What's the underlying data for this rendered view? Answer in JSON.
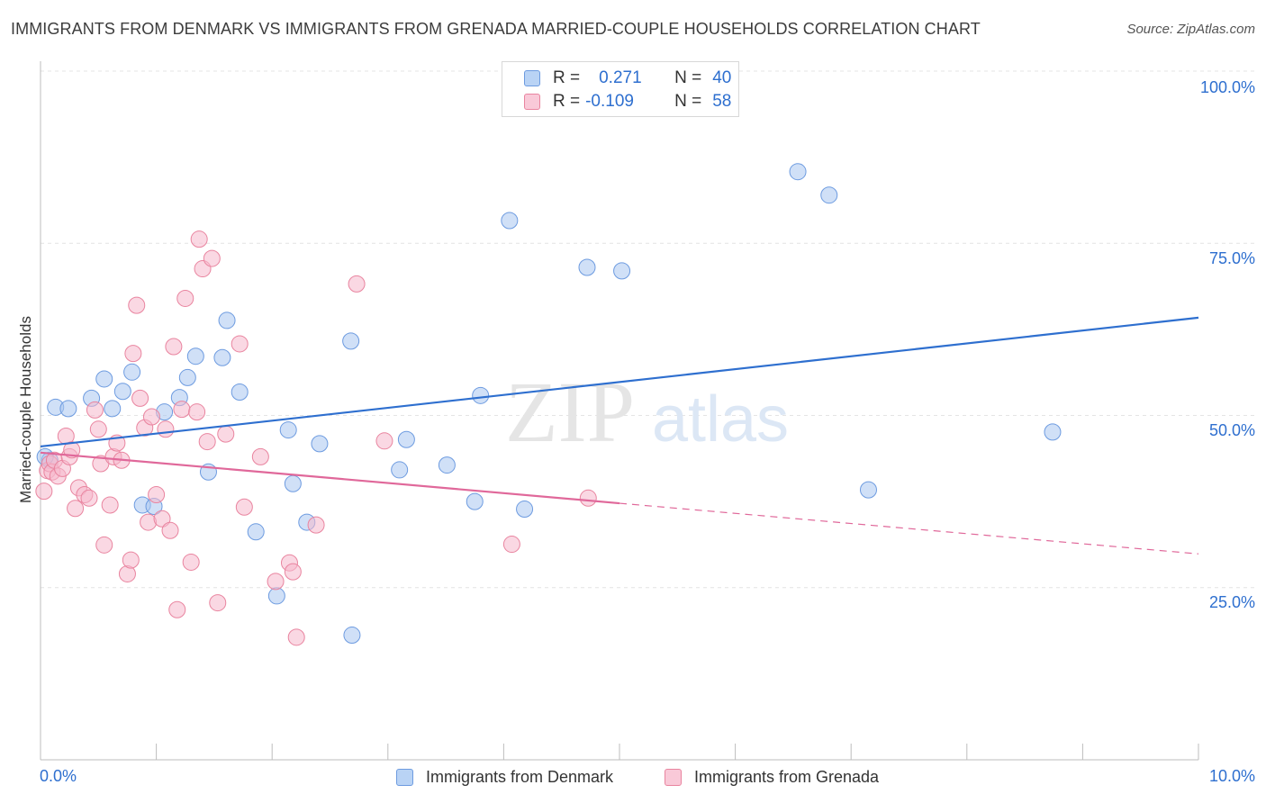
{
  "title": "IMMIGRANTS FROM DENMARK VS IMMIGRANTS FROM GRENADA MARRIED-COUPLE HOUSEHOLDS CORRELATION CHART",
  "source": "Source: ZipAtlas.com",
  "watermark": {
    "part1": "ZIP",
    "part2": "atlas"
  },
  "colors": {
    "denmark_fill": "#a9c7f0",
    "denmark_stroke": "#6d9be0",
    "denmark_line": "#2e6fcf",
    "grenada_fill": "#f6b8cc",
    "grenada_stroke": "#e9849f",
    "grenada_line": "#e0689a",
    "axis_text": "#2e6fcf",
    "grid": "#e4e4e4"
  },
  "legend": {
    "rows": [
      {
        "r_label": "R =",
        "r_value": "0.271",
        "n_label": "N =",
        "n_value": "40"
      },
      {
        "r_label": "R =",
        "r_value": "-0.109",
        "n_label": "N =",
        "n_value": "58"
      }
    ]
  },
  "bottom_legend": [
    {
      "label": "Immigrants from Denmark"
    },
    {
      "label": "Immigrants from Grenada"
    }
  ],
  "chart_data": {
    "type": "scatter",
    "title": "IMMIGRANTS FROM DENMARK VS IMMIGRANTS FROM GRENADA MARRIED-COUPLE HOUSEHOLDS CORRELATION CHART",
    "xlabel": "",
    "ylabel": "Married-couple Households",
    "xlim": [
      0,
      10
    ],
    "ylim": [
      0,
      105
    ],
    "x_tick_labels": [
      {
        "value": 0,
        "label": "0.0%"
      },
      {
        "value": 10,
        "label": "10.0%"
      }
    ],
    "y_tick_labels": [
      {
        "value": 25,
        "label": "25.0%"
      },
      {
        "value": 50,
        "label": "50.0%"
      },
      {
        "value": 75,
        "label": "75.0%"
      },
      {
        "value": 100,
        "label": "100.0%"
      }
    ],
    "grid": true,
    "legend_position": "top-center",
    "series": [
      {
        "name": "Immigrants from Denmark",
        "r": 0.271,
        "n": 40,
        "trend": {
          "x": [
            0,
            10
          ],
          "y": [
            45.5,
            64.2
          ],
          "dashed_after": null
        },
        "points": [
          [
            0.08,
            43.5
          ],
          [
            0.13,
            51.2
          ],
          [
            0.24,
            51.0
          ],
          [
            0.44,
            52.5
          ],
          [
            0.55,
            55.3
          ],
          [
            0.62,
            51.0
          ],
          [
            0.71,
            53.5
          ],
          [
            0.79,
            56.3
          ],
          [
            0.88,
            37.0
          ],
          [
            0.98,
            36.8
          ],
          [
            1.07,
            50.5
          ],
          [
            1.2,
            52.6
          ],
          [
            1.27,
            55.5
          ],
          [
            1.34,
            58.6
          ],
          [
            1.45,
            41.8
          ],
          [
            1.57,
            58.4
          ],
          [
            1.61,
            63.8
          ],
          [
            1.72,
            53.4
          ],
          [
            1.86,
            33.1
          ],
          [
            2.04,
            23.8
          ],
          [
            2.14,
            47.9
          ],
          [
            2.18,
            40.1
          ],
          [
            2.3,
            34.5
          ],
          [
            2.41,
            45.9
          ],
          [
            2.68,
            60.8
          ],
          [
            2.69,
            18.1
          ],
          [
            3.1,
            42.1
          ],
          [
            3.16,
            46.5
          ],
          [
            3.51,
            42.8
          ],
          [
            3.75,
            37.5
          ],
          [
            3.8,
            52.9
          ],
          [
            4.05,
            78.3
          ],
          [
            4.18,
            36.4
          ],
          [
            4.72,
            71.5
          ],
          [
            5.02,
            71.0
          ],
          [
            6.54,
            85.4
          ],
          [
            6.81,
            82.0
          ],
          [
            7.15,
            39.2
          ],
          [
            8.74,
            47.6
          ],
          [
            0.04,
            44.0
          ]
        ]
      },
      {
        "name": "Immigrants from Grenada",
        "r": -0.109,
        "n": 58,
        "trend": {
          "x": [
            0,
            10
          ],
          "y": [
            44.6,
            29.9
          ],
          "solid_until_x": 5.0
        },
        "points": [
          [
            0.03,
            39.0
          ],
          [
            0.06,
            42.0
          ],
          [
            0.08,
            43.0
          ],
          [
            0.1,
            41.8
          ],
          [
            0.12,
            43.5
          ],
          [
            0.15,
            41.2
          ],
          [
            0.19,
            42.3
          ],
          [
            0.22,
            47.0
          ],
          [
            0.25,
            44.0
          ],
          [
            0.27,
            45.0
          ],
          [
            0.3,
            36.5
          ],
          [
            0.33,
            39.5
          ],
          [
            0.38,
            38.5
          ],
          [
            0.42,
            38.0
          ],
          [
            0.47,
            50.8
          ],
          [
            0.5,
            48.0
          ],
          [
            0.52,
            43.0
          ],
          [
            0.55,
            31.2
          ],
          [
            0.6,
            37.0
          ],
          [
            0.63,
            44.0
          ],
          [
            0.66,
            46.0
          ],
          [
            0.7,
            43.5
          ],
          [
            0.75,
            27.0
          ],
          [
            0.78,
            29.0
          ],
          [
            0.8,
            59.0
          ],
          [
            0.83,
            66.0
          ],
          [
            0.86,
            52.5
          ],
          [
            0.9,
            48.2
          ],
          [
            0.93,
            34.5
          ],
          [
            0.96,
            49.8
          ],
          [
            1.0,
            38.5
          ],
          [
            1.05,
            35.0
          ],
          [
            1.08,
            48.0
          ],
          [
            1.12,
            33.3
          ],
          [
            1.15,
            60.0
          ],
          [
            1.18,
            21.8
          ],
          [
            1.22,
            50.9
          ],
          [
            1.25,
            67.0
          ],
          [
            1.3,
            28.7
          ],
          [
            1.35,
            50.5
          ],
          [
            1.37,
            75.6
          ],
          [
            1.4,
            71.3
          ],
          [
            1.44,
            46.2
          ],
          [
            1.48,
            72.8
          ],
          [
            1.53,
            22.8
          ],
          [
            1.6,
            47.3
          ],
          [
            1.72,
            60.4
          ],
          [
            1.76,
            36.7
          ],
          [
            1.9,
            44.0
          ],
          [
            2.03,
            25.9
          ],
          [
            2.15,
            28.6
          ],
          [
            2.18,
            27.3
          ],
          [
            2.21,
            17.8
          ],
          [
            2.38,
            34.1
          ],
          [
            2.73,
            69.1
          ],
          [
            2.97,
            46.3
          ],
          [
            4.07,
            31.3
          ],
          [
            4.73,
            38.0
          ]
        ]
      }
    ]
  }
}
